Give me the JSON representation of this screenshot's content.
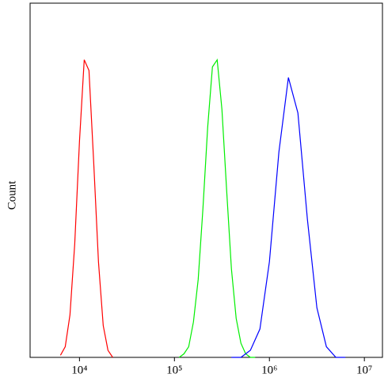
{
  "chart_data": {
    "type": "line",
    "y_label": "Count",
    "x_log": true,
    "xlim": [
      3020,
      15500000
    ],
    "ylim": [
      0,
      100
    ],
    "xticks": [
      {
        "value": 10000,
        "label": "10⁴"
      },
      {
        "value": 100000,
        "label": "10⁵"
      },
      {
        "value": 1000000,
        "label": "10⁶"
      },
      {
        "value": 10000000,
        "label": "10⁷"
      }
    ],
    "series": [
      {
        "color": "#ff0000",
        "x": [
          6310,
          7079,
          7943,
          8913,
          10000,
          11220,
          12589,
          14125,
          15849,
          17783,
          19953,
          22387
        ],
        "values": [
          0.6,
          3,
          12,
          32,
          61,
          84,
          81,
          55,
          27,
          9,
          2,
          0
        ]
      },
      {
        "color": "#00ee00",
        "x": [
          112202,
          125893,
          141254,
          158489,
          177828,
          199526,
          223872,
          251189,
          281838,
          316228,
          354813,
          398107,
          446684,
          501187,
          562341,
          630957,
          707946
        ],
        "values": [
          0,
          1,
          3,
          10,
          22,
          42,
          65,
          82,
          84,
          70,
          47,
          25,
          11,
          4,
          1,
          0,
          0
        ]
      },
      {
        "color": "#0000ff",
        "x": [
          398107,
          501187,
          630957,
          794328,
          1000000,
          1258925,
          1584893,
          1995262,
          2511886,
          3162278,
          3981072,
          5011872,
          6309573
        ],
        "values": [
          0,
          0,
          2,
          8,
          27,
          58,
          79,
          69,
          39,
          14,
          3,
          0,
          0
        ]
      }
    ]
  }
}
